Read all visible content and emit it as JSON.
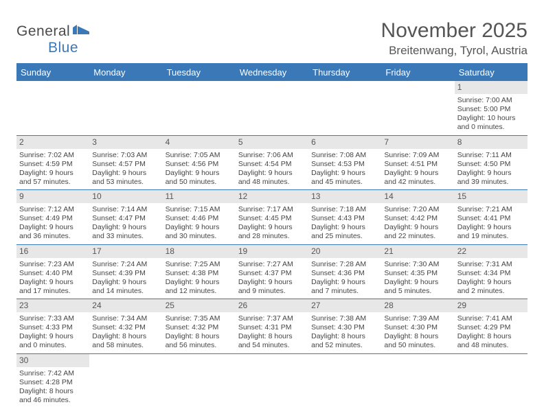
{
  "logo": {
    "text1": "General",
    "text2": "Blue"
  },
  "title": "November 2025",
  "location": "Breitenwang, Tyrol, Austria",
  "colors": {
    "accent": "#3b78b8",
    "daynum_bg": "#e7e7e7",
    "text": "#444444",
    "title": "#555555",
    "bg": "#ffffff"
  },
  "dayHeaders": [
    "Sunday",
    "Monday",
    "Tuesday",
    "Wednesday",
    "Thursday",
    "Friday",
    "Saturday"
  ],
  "weeks": [
    [
      {
        "n": "",
        "sr": "",
        "ss": "",
        "dl": ""
      },
      {
        "n": "",
        "sr": "",
        "ss": "",
        "dl": ""
      },
      {
        "n": "",
        "sr": "",
        "ss": "",
        "dl": ""
      },
      {
        "n": "",
        "sr": "",
        "ss": "",
        "dl": ""
      },
      {
        "n": "",
        "sr": "",
        "ss": "",
        "dl": ""
      },
      {
        "n": "",
        "sr": "",
        "ss": "",
        "dl": ""
      },
      {
        "n": "1",
        "sr": "Sunrise: 7:00 AM",
        "ss": "Sunset: 5:00 PM",
        "dl": "Daylight: 10 hours and 0 minutes."
      }
    ],
    [
      {
        "n": "2",
        "sr": "Sunrise: 7:02 AM",
        "ss": "Sunset: 4:59 PM",
        "dl": "Daylight: 9 hours and 57 minutes."
      },
      {
        "n": "3",
        "sr": "Sunrise: 7:03 AM",
        "ss": "Sunset: 4:57 PM",
        "dl": "Daylight: 9 hours and 53 minutes."
      },
      {
        "n": "4",
        "sr": "Sunrise: 7:05 AM",
        "ss": "Sunset: 4:56 PM",
        "dl": "Daylight: 9 hours and 50 minutes."
      },
      {
        "n": "5",
        "sr": "Sunrise: 7:06 AM",
        "ss": "Sunset: 4:54 PM",
        "dl": "Daylight: 9 hours and 48 minutes."
      },
      {
        "n": "6",
        "sr": "Sunrise: 7:08 AM",
        "ss": "Sunset: 4:53 PM",
        "dl": "Daylight: 9 hours and 45 minutes."
      },
      {
        "n": "7",
        "sr": "Sunrise: 7:09 AM",
        "ss": "Sunset: 4:51 PM",
        "dl": "Daylight: 9 hours and 42 minutes."
      },
      {
        "n": "8",
        "sr": "Sunrise: 7:11 AM",
        "ss": "Sunset: 4:50 PM",
        "dl": "Daylight: 9 hours and 39 minutes."
      }
    ],
    [
      {
        "n": "9",
        "sr": "Sunrise: 7:12 AM",
        "ss": "Sunset: 4:49 PM",
        "dl": "Daylight: 9 hours and 36 minutes."
      },
      {
        "n": "10",
        "sr": "Sunrise: 7:14 AM",
        "ss": "Sunset: 4:47 PM",
        "dl": "Daylight: 9 hours and 33 minutes."
      },
      {
        "n": "11",
        "sr": "Sunrise: 7:15 AM",
        "ss": "Sunset: 4:46 PM",
        "dl": "Daylight: 9 hours and 30 minutes."
      },
      {
        "n": "12",
        "sr": "Sunrise: 7:17 AM",
        "ss": "Sunset: 4:45 PM",
        "dl": "Daylight: 9 hours and 28 minutes."
      },
      {
        "n": "13",
        "sr": "Sunrise: 7:18 AM",
        "ss": "Sunset: 4:43 PM",
        "dl": "Daylight: 9 hours and 25 minutes."
      },
      {
        "n": "14",
        "sr": "Sunrise: 7:20 AM",
        "ss": "Sunset: 4:42 PM",
        "dl": "Daylight: 9 hours and 22 minutes."
      },
      {
        "n": "15",
        "sr": "Sunrise: 7:21 AM",
        "ss": "Sunset: 4:41 PM",
        "dl": "Daylight: 9 hours and 19 minutes."
      }
    ],
    [
      {
        "n": "16",
        "sr": "Sunrise: 7:23 AM",
        "ss": "Sunset: 4:40 PM",
        "dl": "Daylight: 9 hours and 17 minutes."
      },
      {
        "n": "17",
        "sr": "Sunrise: 7:24 AM",
        "ss": "Sunset: 4:39 PM",
        "dl": "Daylight: 9 hours and 14 minutes."
      },
      {
        "n": "18",
        "sr": "Sunrise: 7:25 AM",
        "ss": "Sunset: 4:38 PM",
        "dl": "Daylight: 9 hours and 12 minutes."
      },
      {
        "n": "19",
        "sr": "Sunrise: 7:27 AM",
        "ss": "Sunset: 4:37 PM",
        "dl": "Daylight: 9 hours and 9 minutes."
      },
      {
        "n": "20",
        "sr": "Sunrise: 7:28 AM",
        "ss": "Sunset: 4:36 PM",
        "dl": "Daylight: 9 hours and 7 minutes."
      },
      {
        "n": "21",
        "sr": "Sunrise: 7:30 AM",
        "ss": "Sunset: 4:35 PM",
        "dl": "Daylight: 9 hours and 5 minutes."
      },
      {
        "n": "22",
        "sr": "Sunrise: 7:31 AM",
        "ss": "Sunset: 4:34 PM",
        "dl": "Daylight: 9 hours and 2 minutes."
      }
    ],
    [
      {
        "n": "23",
        "sr": "Sunrise: 7:33 AM",
        "ss": "Sunset: 4:33 PM",
        "dl": "Daylight: 9 hours and 0 minutes."
      },
      {
        "n": "24",
        "sr": "Sunrise: 7:34 AM",
        "ss": "Sunset: 4:32 PM",
        "dl": "Daylight: 8 hours and 58 minutes."
      },
      {
        "n": "25",
        "sr": "Sunrise: 7:35 AM",
        "ss": "Sunset: 4:32 PM",
        "dl": "Daylight: 8 hours and 56 minutes."
      },
      {
        "n": "26",
        "sr": "Sunrise: 7:37 AM",
        "ss": "Sunset: 4:31 PM",
        "dl": "Daylight: 8 hours and 54 minutes."
      },
      {
        "n": "27",
        "sr": "Sunrise: 7:38 AM",
        "ss": "Sunset: 4:30 PM",
        "dl": "Daylight: 8 hours and 52 minutes."
      },
      {
        "n": "28",
        "sr": "Sunrise: 7:39 AM",
        "ss": "Sunset: 4:30 PM",
        "dl": "Daylight: 8 hours and 50 minutes."
      },
      {
        "n": "29",
        "sr": "Sunrise: 7:41 AM",
        "ss": "Sunset: 4:29 PM",
        "dl": "Daylight: 8 hours and 48 minutes."
      }
    ],
    [
      {
        "n": "30",
        "sr": "Sunrise: 7:42 AM",
        "ss": "Sunset: 4:28 PM",
        "dl": "Daylight: 8 hours and 46 minutes."
      },
      {
        "n": "",
        "sr": "",
        "ss": "",
        "dl": ""
      },
      {
        "n": "",
        "sr": "",
        "ss": "",
        "dl": ""
      },
      {
        "n": "",
        "sr": "",
        "ss": "",
        "dl": ""
      },
      {
        "n": "",
        "sr": "",
        "ss": "",
        "dl": ""
      },
      {
        "n": "",
        "sr": "",
        "ss": "",
        "dl": ""
      },
      {
        "n": "",
        "sr": "",
        "ss": "",
        "dl": ""
      }
    ]
  ]
}
